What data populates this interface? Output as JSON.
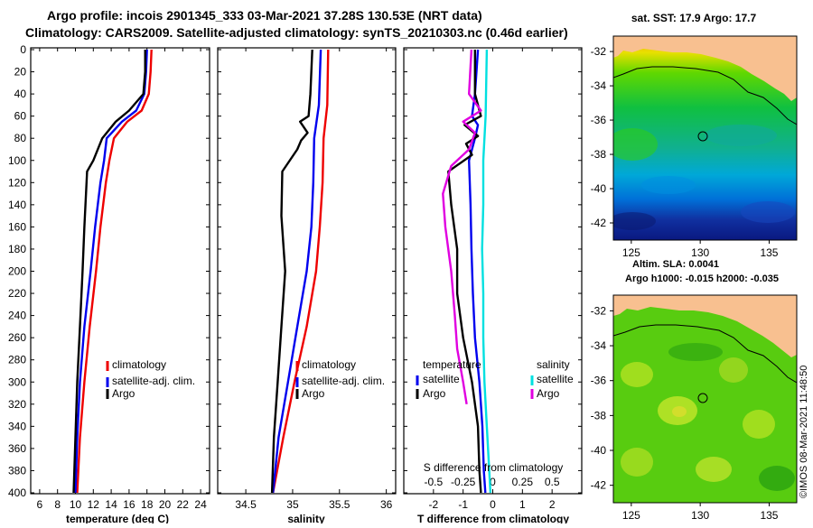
{
  "header": {
    "title_line1": "Argo profile: incois 2901345_333 03-Mar-2021 37.28S 130.53E (NRT data)",
    "title_line2": "Climatology: CARS2009. Satellite-adjusted climatology: synTS_20210303.nc (0.46d earlier)"
  },
  "colors": {
    "climatology": "#ee0000",
    "satellite": "#0000ee",
    "argo": "#000000",
    "sat_salinity": "#00e0e0",
    "argo_salinity": "#e000e0",
    "land": "#f8c090"
  },
  "chart_data": [
    {
      "type": "line",
      "title": "",
      "xlabel": "temperature (deg C)",
      "ylabel": "",
      "xlim": [
        5,
        25
      ],
      "ylim": [
        400,
        0
      ],
      "x_ticks": [
        6,
        8,
        10,
        12,
        14,
        16,
        18,
        20,
        22,
        24
      ],
      "y_ticks": [
        0,
        20,
        40,
        60,
        80,
        100,
        120,
        140,
        160,
        180,
        200,
        220,
        240,
        260,
        280,
        300,
        320,
        340,
        360,
        380,
        400
      ],
      "legend": [
        "climatology",
        "satellite-adj. clim.",
        "Argo"
      ],
      "series": [
        {
          "name": "climatology",
          "color": "#ee0000",
          "depth": [
            0,
            20,
            40,
            55,
            65,
            80,
            100,
            120,
            160,
            200,
            250,
            300,
            350,
            400
          ],
          "values": [
            18.5,
            18.4,
            18.2,
            17.4,
            15.8,
            14.3,
            13.8,
            13.4,
            12.8,
            12.3,
            11.6,
            11.0,
            10.5,
            10.2
          ]
        },
        {
          "name": "satellite-adj. clim.",
          "color": "#0000ee",
          "depth": [
            0,
            20,
            40,
            55,
            65,
            80,
            100,
            120,
            160,
            200,
            250,
            300,
            350,
            400
          ],
          "values": [
            18.0,
            17.9,
            17.7,
            16.8,
            15.2,
            13.5,
            13.2,
            12.8,
            12.2,
            11.7,
            11.0,
            10.5,
            10.2,
            10.0
          ]
        },
        {
          "name": "Argo",
          "color": "#000000",
          "depth": [
            0,
            20,
            40,
            55,
            65,
            80,
            100,
            110,
            160,
            200,
            250,
            300,
            350,
            400
          ],
          "values": [
            17.8,
            17.8,
            17.6,
            16.0,
            14.5,
            13.0,
            12.0,
            11.3,
            11.0,
            10.8,
            10.5,
            10.2,
            10.0,
            9.8
          ]
        }
      ]
    },
    {
      "type": "line",
      "title": "",
      "xlabel": "salinity",
      "ylabel": "",
      "xlim": [
        34.2,
        36.1
      ],
      "ylim": [
        400,
        0
      ],
      "x_ticks": [
        34.5,
        35,
        35.5,
        36
      ],
      "x_tick_labels": [
        "34.5",
        "35",
        "35.5",
        "36"
      ],
      "legend": [
        "climatology",
        "satellite-adj. clim.",
        "Argo"
      ],
      "series": [
        {
          "name": "climatology",
          "color": "#ee0000",
          "depth": [
            0,
            50,
            80,
            120,
            160,
            200,
            250,
            300,
            350,
            400
          ],
          "values": [
            35.38,
            35.37,
            35.33,
            35.32,
            35.29,
            35.25,
            35.15,
            35.02,
            34.9,
            34.79
          ]
        },
        {
          "name": "satellite-adj. clim.",
          "color": "#0000ee",
          "depth": [
            0,
            50,
            80,
            120,
            160,
            200,
            250,
            300,
            350,
            400
          ],
          "values": [
            35.3,
            35.28,
            35.23,
            35.22,
            35.2,
            35.15,
            35.05,
            34.95,
            34.85,
            34.79
          ]
        },
        {
          "name": "Argo",
          "color": "#000000",
          "depth": [
            0,
            40,
            60,
            65,
            75,
            82,
            90,
            110,
            150,
            200,
            250,
            300,
            350,
            400
          ],
          "values": [
            35.21,
            35.19,
            35.17,
            35.08,
            35.16,
            35.09,
            35.05,
            34.89,
            34.88,
            34.92,
            34.88,
            34.84,
            34.8,
            34.78
          ]
        }
      ]
    },
    {
      "type": "line",
      "title": "",
      "xlabel": "T difference from climatology",
      "ylabel": "",
      "xlim": [
        -3,
        3
      ],
      "ylim": [
        400,
        0
      ],
      "x_ticks": [
        -2,
        -1,
        0,
        1,
        2
      ],
      "top_xlabel": "S difference from climatology",
      "top_x_ticks": [
        -0.5,
        -0.25,
        0,
        0.25,
        0.5
      ],
      "top_x_tick_labels": [
        "-0.5",
        "-0.25",
        "0",
        "0.25",
        "0.5"
      ],
      "legend_groups": {
        "temperature": [
          "satellite",
          "Argo"
        ],
        "salinity": [
          "satellite",
          "Argo"
        ]
      },
      "series": [
        {
          "name": "temperature satellite",
          "color": "#0000ee",
          "depth": [
            0,
            40,
            60,
            68,
            80,
            100,
            140,
            180,
            220,
            260,
            300,
            340,
            380,
            400
          ],
          "values": [
            -0.5,
            -0.6,
            -0.7,
            -0.5,
            -0.6,
            -0.8,
            -0.75,
            -0.72,
            -0.67,
            -0.6,
            -0.45,
            -0.35,
            -0.3,
            -0.25
          ]
        },
        {
          "name": "temperature Argo",
          "color": "#000000",
          "depth": [
            0,
            40,
            60,
            68,
            78,
            85,
            95,
            110,
            140,
            180,
            220,
            260,
            300,
            340,
            380,
            400
          ],
          "values": [
            -0.6,
            -0.6,
            -0.4,
            -0.95,
            -0.5,
            -0.9,
            -0.7,
            -1.5,
            -1.4,
            -1.2,
            -1.2,
            -1.0,
            -0.7,
            -0.5,
            -0.45,
            -0.4
          ]
        },
        {
          "name": "salinity satellite",
          "color": "#00e0e0",
          "depth": [
            0,
            60,
            100,
            140,
            180,
            220,
            260,
            300,
            340,
            380,
            400
          ],
          "values": [
            -0.05,
            -0.06,
            -0.08,
            -0.08,
            -0.09,
            -0.08,
            -0.08,
            -0.07,
            -0.05,
            -0.03,
            -0.02
          ]
        },
        {
          "name": "salinity Argo",
          "color": "#e000e0",
          "depth": [
            0,
            40,
            55,
            65,
            75,
            90,
            105,
            130,
            160,
            200,
            240,
            270,
            300,
            320
          ],
          "values": [
            -0.18,
            -0.2,
            -0.1,
            -0.25,
            -0.15,
            -0.2,
            -0.35,
            -0.42,
            -0.4,
            -0.35,
            -0.32,
            -0.3,
            -0.25,
            -0.22
          ]
        }
      ]
    }
  ],
  "maps": {
    "top": {
      "title": "sat. SST: 17.9 Argo: 17.7",
      "lat_ticks": [
        "-32",
        "-34",
        "-36",
        "-38",
        "-40",
        "-42"
      ],
      "lon_ticks": [
        "125",
        "130",
        "135"
      ]
    },
    "bottom": {
      "title_line1": "Altim. SLA: 0.0041",
      "title_line2": "Argo h1000: -0.015 h2000: -0.035",
      "lat_ticks": [
        "-32",
        "-34",
        "-36",
        "-38",
        "-40",
        "-42"
      ],
      "lon_ticks": [
        "125",
        "130",
        "135"
      ]
    }
  },
  "credit": "©IMOS 08-Mar-2021 11:48:50"
}
